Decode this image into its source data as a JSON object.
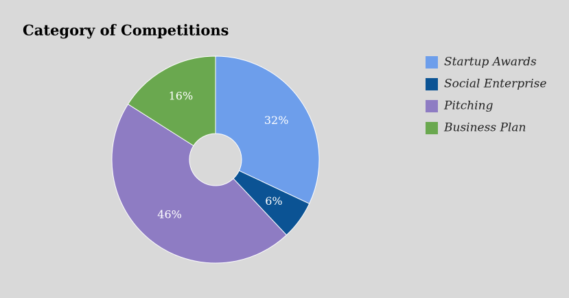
{
  "chart_data": {
    "type": "donut",
    "title": "Category of Competitions",
    "categories": [
      "Startup Awards",
      "Social Enterprise",
      "Pitching",
      "Business Plan"
    ],
    "values": [
      32,
      6,
      46,
      16
    ],
    "value_labels": [
      "32%",
      "6%",
      "46%",
      "16%"
    ],
    "colors": [
      "#6d9eeb",
      "#0b5394",
      "#8e7cc3",
      "#6aa84f"
    ],
    "legend": "right"
  }
}
